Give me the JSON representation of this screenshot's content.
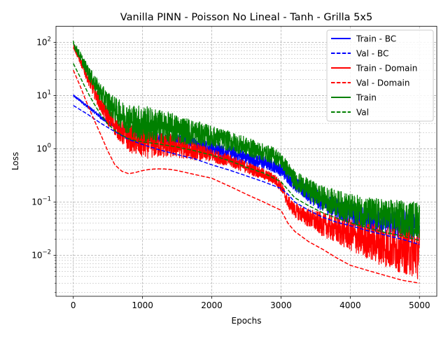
{
  "chart_data": {
    "type": "line",
    "title": "Vanilla PINN - Poisson No Lineal - Tanh - Grilla 5x5",
    "xlabel": "Epochs",
    "ylabel": "Loss",
    "xscale": "linear",
    "yscale": "log",
    "xlim": [
      -250,
      5250
    ],
    "ylim": [
      0.0017,
      200
    ],
    "grid": true,
    "legend_position": "top-right",
    "x_ticks": [
      {
        "value": 0,
        "label": "0"
      },
      {
        "value": 1000,
        "label": "1000"
      },
      {
        "value": 2000,
        "label": "2000"
      },
      {
        "value": 3000,
        "label": "3000"
      },
      {
        "value": 4000,
        "label": "4000"
      },
      {
        "value": 5000,
        "label": "5000"
      }
    ],
    "y_ticks": [
      {
        "value": 0.01,
        "mantissa": "10",
        "exponent": "−2"
      },
      {
        "value": 0.1,
        "mantissa": "10",
        "exponent": "−1"
      },
      {
        "value": 1,
        "mantissa": "10",
        "exponent": "0"
      },
      {
        "value": 10,
        "mantissa": "10",
        "exponent": "1"
      },
      {
        "value": 100,
        "mantissa": "10",
        "exponent": "2"
      }
    ],
    "series": [
      {
        "name": "Train - BC",
        "color": "#0000ff",
        "style": "solid",
        "noise": [
          0.02,
          0.06,
          0.15,
          0.12,
          0.22,
          0.28
        ],
        "x": [
          0,
          100,
          200,
          300,
          400,
          500,
          600,
          700,
          800,
          900,
          1000,
          1250,
          1500,
          1750,
          2000,
          2250,
          2500,
          2750,
          2900,
          3000,
          3100,
          3200,
          3400,
          3600,
          3800,
          4000,
          4250,
          4500,
          4750,
          5000
        ],
        "y": [
          10,
          8,
          6.3,
          5,
          3.9,
          3.1,
          2.6,
          2.3,
          2.1,
          1.95,
          1.85,
          1.65,
          1.45,
          1.25,
          1.05,
          0.85,
          0.67,
          0.55,
          0.48,
          0.4,
          0.3,
          0.22,
          0.14,
          0.1,
          0.075,
          0.06,
          0.05,
          0.043,
          0.038,
          0.035
        ]
      },
      {
        "name": "Val - BC",
        "color": "#0000ff",
        "style": "dashed",
        "noise": [
          0,
          0,
          0,
          0,
          0,
          0
        ],
        "x": [
          0,
          200,
          400,
          600,
          800,
          1000,
          1250,
          1500,
          1750,
          2000,
          2250,
          2500,
          2750,
          3000,
          3100,
          3200,
          3400,
          3600,
          3800,
          4000,
          4250,
          4500,
          4750,
          5000
        ],
        "y": [
          6.5,
          4.5,
          3,
          2.1,
          1.5,
          1.2,
          0.95,
          0.78,
          0.65,
          0.5,
          0.4,
          0.31,
          0.24,
          0.18,
          0.14,
          0.1,
          0.07,
          0.052,
          0.042,
          0.036,
          0.029,
          0.024,
          0.02,
          0.016
        ]
      },
      {
        "name": "Train - Domain",
        "color": "#ff0000",
        "style": "solid",
        "noise": [
          0.04,
          0.3,
          0.12,
          0.1,
          0.3,
          0.5
        ],
        "x": [
          0,
          100,
          200,
          300,
          400,
          500,
          600,
          700,
          800,
          900,
          1000,
          1250,
          1500,
          1750,
          2000,
          2250,
          2500,
          2750,
          2900,
          3000,
          3100,
          3200,
          3400,
          3600,
          3800,
          4000,
          4250,
          4500,
          4750,
          5000
        ],
        "y": [
          85,
          45,
          22,
          12,
          6.5,
          4,
          2.8,
          2,
          1.6,
          1.4,
          1.3,
          1.22,
          1.1,
          0.9,
          0.75,
          0.6,
          0.45,
          0.33,
          0.27,
          0.2,
          0.1,
          0.07,
          0.05,
          0.038,
          0.03,
          0.024,
          0.019,
          0.015,
          0.013,
          0.011
        ]
      },
      {
        "name": "Val - Domain",
        "color": "#ff0000",
        "style": "dashed",
        "noise": [
          0,
          0,
          0,
          0,
          0,
          0
        ],
        "x": [
          0,
          100,
          200,
          300,
          400,
          500,
          600,
          700,
          800,
          900,
          1000,
          1100,
          1200,
          1300,
          1400,
          1500,
          1750,
          2000,
          2250,
          2500,
          2750,
          3000,
          3100,
          3200,
          3400,
          3600,
          3800,
          4000,
          4250,
          4500,
          4750,
          5000
        ],
        "y": [
          30,
          15,
          7,
          3.5,
          1.8,
          0.9,
          0.5,
          0.38,
          0.34,
          0.36,
          0.39,
          0.41,
          0.42,
          0.42,
          0.41,
          0.39,
          0.33,
          0.28,
          0.2,
          0.14,
          0.1,
          0.07,
          0.04,
          0.028,
          0.018,
          0.013,
          0.009,
          0.0065,
          0.0052,
          0.0042,
          0.0034,
          0.003
        ]
      },
      {
        "name": "Train",
        "color": "#008000",
        "style": "solid",
        "noise": [
          0.06,
          0.35,
          0.2,
          0.15,
          0.28,
          0.35
        ],
        "x": [
          0,
          100,
          200,
          300,
          400,
          500,
          600,
          700,
          800,
          900,
          1000,
          1250,
          1500,
          1750,
          2000,
          2250,
          2500,
          2750,
          2900,
          3000,
          3100,
          3200,
          3400,
          3600,
          3800,
          4000,
          4250,
          4500,
          4750,
          5000
        ],
        "y": [
          95,
          55,
          30,
          18,
          11,
          7.5,
          5.5,
          4.3,
          3.6,
          3.2,
          3,
          2.65,
          2.35,
          2,
          1.7,
          1.4,
          1.1,
          0.85,
          0.75,
          0.6,
          0.4,
          0.26,
          0.17,
          0.12,
          0.095,
          0.075,
          0.063,
          0.055,
          0.05,
          0.046
        ]
      },
      {
        "name": "Val",
        "color": "#008000",
        "style": "dashed",
        "noise": [
          0,
          0,
          0,
          0,
          0,
          0
        ],
        "x": [
          0,
          100,
          200,
          300,
          400,
          500,
          600,
          700,
          800,
          900,
          1000,
          1250,
          1500,
          1750,
          2000,
          2250,
          2500,
          2750,
          3000,
          3100,
          3200,
          3400,
          3600,
          3800,
          4000,
          4250,
          4500,
          4750,
          5000
        ],
        "y": [
          40,
          22,
          12,
          7,
          4.3,
          2.9,
          2.2,
          1.8,
          1.55,
          1.42,
          1.35,
          1.22,
          1.08,
          0.92,
          0.76,
          0.6,
          0.45,
          0.35,
          0.24,
          0.17,
          0.12,
          0.085,
          0.063,
          0.05,
          0.041,
          0.033,
          0.027,
          0.023,
          0.019
        ]
      }
    ]
  }
}
